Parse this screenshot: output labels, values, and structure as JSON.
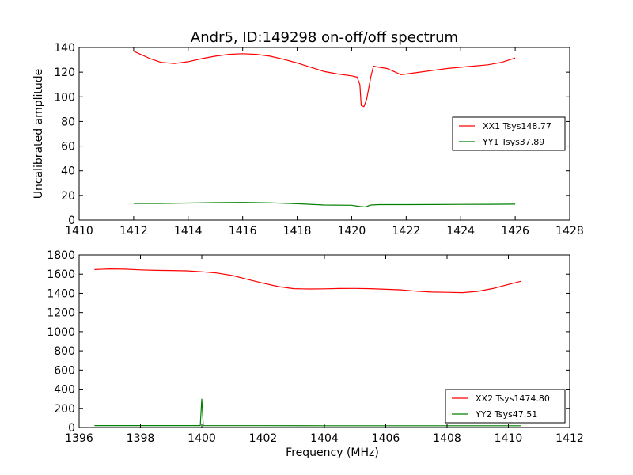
{
  "figure_title": "Andr5, ID:149298 on-off/off spectrum",
  "chart_data": [
    {
      "type": "line",
      "title": "Andr5, ID:149298 on-off/off spectrum",
      "xlabel": "",
      "ylabel": "Uncalibrated amplitude",
      "xlim": [
        1410,
        1428
      ],
      "ylim": [
        0,
        140
      ],
      "xticks": [
        1410,
        1412,
        1414,
        1416,
        1418,
        1420,
        1422,
        1424,
        1426,
        1428
      ],
      "yticks": [
        0,
        20,
        40,
        60,
        80,
        100,
        120,
        140
      ],
      "legend_position": "center-right",
      "series": [
        {
          "name": "XX1 Tsys148.77",
          "color": "#ff0000",
          "points": [
            [
              1412.0,
              137
            ],
            [
              1412.3,
              134
            ],
            [
              1412.6,
              131
            ],
            [
              1413.0,
              128
            ],
            [
              1413.5,
              127
            ],
            [
              1414.0,
              128.5
            ],
            [
              1414.5,
              131
            ],
            [
              1415.0,
              133
            ],
            [
              1415.5,
              134.5
            ],
            [
              1416.0,
              135
            ],
            [
              1416.5,
              134.5
            ],
            [
              1417.0,
              133
            ],
            [
              1417.5,
              130.5
            ],
            [
              1418.0,
              127.5
            ],
            [
              1418.5,
              124
            ],
            [
              1419.0,
              120.5
            ],
            [
              1419.5,
              118.5
            ],
            [
              1420.0,
              117
            ],
            [
              1420.2,
              116
            ],
            [
              1420.3,
              110
            ],
            [
              1420.35,
              93
            ],
            [
              1420.45,
              92
            ],
            [
              1420.55,
              98
            ],
            [
              1420.7,
              116
            ],
            [
              1420.8,
              125
            ],
            [
              1421.0,
              124
            ],
            [
              1421.3,
              123
            ],
            [
              1421.6,
              120
            ],
            [
              1421.8,
              118
            ],
            [
              1422.0,
              118.5
            ],
            [
              1422.5,
              120
            ],
            [
              1423.0,
              121.5
            ],
            [
              1423.5,
              123
            ],
            [
              1424.0,
              124
            ],
            [
              1424.5,
              125
            ],
            [
              1425.0,
              126
            ],
            [
              1425.5,
              128
            ],
            [
              1426.0,
              131.5
            ]
          ]
        },
        {
          "name": "YY1 Tsys37.89",
          "color": "#008000",
          "points": [
            [
              1412.0,
              13.5
            ],
            [
              1413.0,
              13.5
            ],
            [
              1414.0,
              13.8
            ],
            [
              1415.0,
              14.1
            ],
            [
              1416.0,
              14.3
            ],
            [
              1417.0,
              14.0
            ],
            [
              1418.0,
              13.2
            ],
            [
              1419.0,
              12.2
            ],
            [
              1420.0,
              12.0
            ],
            [
              1420.3,
              11.0
            ],
            [
              1420.5,
              10.6
            ],
            [
              1420.7,
              12.2
            ],
            [
              1421.0,
              12.5
            ],
            [
              1422.0,
              12.5
            ],
            [
              1423.0,
              12.6
            ],
            [
              1424.0,
              12.7
            ],
            [
              1425.0,
              12.8
            ],
            [
              1426.0,
              12.9
            ]
          ]
        }
      ]
    },
    {
      "type": "line",
      "title": "",
      "xlabel": "Frequency (MHz)",
      "ylabel": "",
      "xlim": [
        1396,
        1412
      ],
      "ylim": [
        0,
        1800
      ],
      "xticks": [
        1396,
        1398,
        1400,
        1402,
        1404,
        1406,
        1408,
        1410,
        1412
      ],
      "yticks": [
        0,
        200,
        400,
        600,
        800,
        1000,
        1200,
        1400,
        1600,
        1800
      ],
      "legend_position": "lower-right",
      "series": [
        {
          "name": "XX2 Tsys1474.80",
          "color": "#ff0000",
          "points": [
            [
              1396.5,
              1648
            ],
            [
              1397.0,
              1655
            ],
            [
              1397.5,
              1652
            ],
            [
              1398.0,
              1645
            ],
            [
              1398.5,
              1640
            ],
            [
              1399.0,
              1638
            ],
            [
              1399.5,
              1635
            ],
            [
              1400.0,
              1625
            ],
            [
              1400.5,
              1612
            ],
            [
              1401.0,
              1585
            ],
            [
              1401.5,
              1545
            ],
            [
              1402.0,
              1505
            ],
            [
              1402.5,
              1470
            ],
            [
              1403.0,
              1448
            ],
            [
              1403.5,
              1445
            ],
            [
              1404.0,
              1447
            ],
            [
              1404.5,
              1450
            ],
            [
              1405.0,
              1451
            ],
            [
              1405.5,
              1448
            ],
            [
              1406.0,
              1442
            ],
            [
              1406.5,
              1436
            ],
            [
              1407.0,
              1422
            ],
            [
              1407.5,
              1413
            ],
            [
              1408.0,
              1410
            ],
            [
              1408.5,
              1407
            ],
            [
              1409.0,
              1420
            ],
            [
              1409.5,
              1450
            ],
            [
              1410.0,
              1492
            ],
            [
              1410.4,
              1525
            ]
          ]
        },
        {
          "name": "YY2 Tsys47.51",
          "color": "#008000",
          "points": [
            [
              1396.5,
              20
            ],
            [
              1398.0,
              20
            ],
            [
              1399.95,
              20
            ],
            [
              1400.0,
              300
            ],
            [
              1400.05,
              20
            ],
            [
              1402.0,
              19
            ],
            [
              1404.0,
              18
            ],
            [
              1406.0,
              18
            ],
            [
              1408.0,
              18
            ],
            [
              1410.4,
              18
            ]
          ]
        }
      ]
    }
  ]
}
